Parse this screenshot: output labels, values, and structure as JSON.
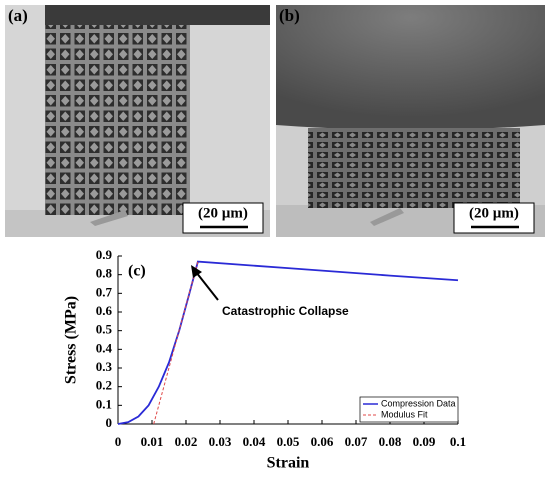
{
  "panels": [
    {
      "label": "(a)",
      "scale_bar": "(20 µm)"
    },
    {
      "label": "(b)",
      "scale_bar": "(20 µm)"
    }
  ],
  "chart_data": {
    "type": "line",
    "label": "(c)",
    "xlabel": "Strain",
    "ylabel": "Stress (MPa)",
    "annotation": "Catastrophic Collapse",
    "xlim": [
      0,
      0.1
    ],
    "ylim": [
      0,
      0.9
    ],
    "xticks": [
      0,
      0.01,
      0.02,
      0.03,
      0.04,
      0.05,
      0.06,
      0.07,
      0.08,
      0.09,
      0.1
    ],
    "yticks": [
      0,
      0.1,
      0.2,
      0.3,
      0.4,
      0.5,
      0.6,
      0.7,
      0.8,
      0.9
    ],
    "legend": "lower right",
    "series": [
      {
        "name": "Compression Data",
        "color": "#2a2ad6",
        "style": "solid",
        "x": [
          0,
          0.003,
          0.006,
          0.009,
          0.012,
          0.015,
          0.018,
          0.021,
          0.0235,
          0.05,
          0.08,
          0.1
        ],
        "values": [
          0,
          0.01,
          0.04,
          0.1,
          0.2,
          0.33,
          0.5,
          0.7,
          0.87,
          0.835,
          0.795,
          0.77
        ]
      },
      {
        "name": "Modulus Fit",
        "color": "#e04848",
        "style": "dashed",
        "x": [
          0.0105,
          0.0235
        ],
        "values": [
          0,
          0.87
        ]
      }
    ]
  }
}
